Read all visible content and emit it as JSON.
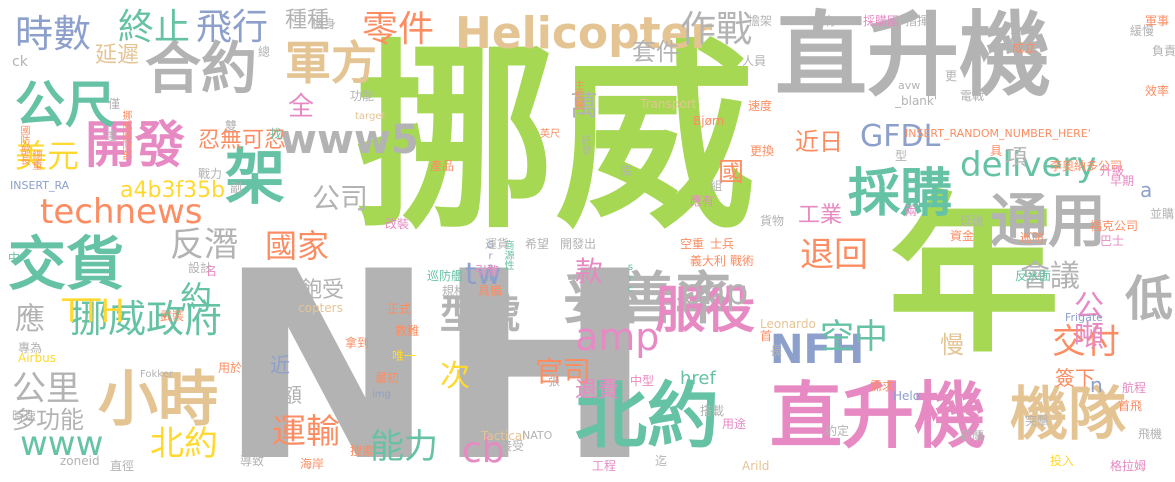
{
  "palette": {
    "green": "#a6d854",
    "gray": "#b3b3b3",
    "orange": "#fc8d62",
    "blue": "#8da0cb",
    "pink": "#e78ac3",
    "tan": "#e5c494",
    "teal": "#66c2a5",
    "yellow": "#ffd92f"
  },
  "words": [
    {
      "text": "挪威",
      "color": "green"
    },
    {
      "text": "NH",
      "color": "gray"
    },
    {
      "text": "直升機",
      "color": "gray"
    },
    {
      "text": "年",
      "color": "green"
    },
    {
      "text": "北約",
      "color": "teal"
    },
    {
      "text": "直升機",
      "color": "pink"
    },
    {
      "text": "Helicopter",
      "color": "tan"
    },
    {
      "text": "妥善率",
      "color": "gray"
    },
    {
      "text": "合約",
      "color": "gray"
    },
    {
      "text": "架",
      "color": "teal"
    },
    {
      "text": "交貨",
      "color": "teal"
    },
    {
      "text": "小時",
      "color": "tan"
    },
    {
      "text": "開發",
      "color": "pink"
    },
    {
      "text": "公尺",
      "color": "teal"
    },
    {
      "text": "採購",
      "color": "teal"
    },
    {
      "text": "通用",
      "color": "gray"
    },
    {
      "text": "機隊",
      "color": "tan"
    },
    {
      "text": "服役",
      "color": "pink"
    },
    {
      "text": "www5",
      "color": "gray"
    },
    {
      "text": "軍方",
      "color": "tan"
    },
    {
      "text": "時數",
      "color": "blue"
    },
    {
      "text": "終止",
      "color": "teal"
    },
    {
      "text": "飛行",
      "color": "blue"
    },
    {
      "text": "零件",
      "color": "orange"
    },
    {
      "text": "作戰",
      "color": "gray"
    },
    {
      "text": "挪威政府",
      "color": "teal"
    },
    {
      "text": "型號",
      "color": "gray"
    },
    {
      "text": "technews",
      "color": "orange"
    },
    {
      "text": "delivery",
      "color": "teal"
    },
    {
      "text": "NFH",
      "color": "blue"
    },
    {
      "text": "GFDL",
      "color": "blue"
    },
    {
      "text": "php",
      "color": "gray"
    },
    {
      "text": "amp",
      "color": "pink"
    },
    {
      "text": "反潛",
      "color": "gray"
    },
    {
      "text": "美元",
      "color": "yellow"
    },
    {
      "text": "TTH",
      "color": "yellow"
    },
    {
      "text": "公里",
      "color": "gray"
    },
    {
      "text": "www",
      "color": "teal"
    },
    {
      "text": "北約",
      "color": "yellow"
    },
    {
      "text": "運輸",
      "color": "orange"
    },
    {
      "text": "能力",
      "color": "teal"
    },
    {
      "text": "cb",
      "color": "pink"
    },
    {
      "text": "空中",
      "color": "teal"
    },
    {
      "text": "交付",
      "color": "orange"
    },
    {
      "text": "公噸",
      "color": "pink"
    },
    {
      "text": "會議",
      "color": "gray"
    },
    {
      "text": "低",
      "color": "gray"
    },
    {
      "text": "退回",
      "color": "orange"
    },
    {
      "text": "國家",
      "color": "orange"
    },
    {
      "text": "款",
      "color": "pink"
    },
    {
      "text": "官司",
      "color": "orange"
    },
    {
      "text": "tw",
      "color": "blue"
    },
    {
      "text": "次",
      "color": "yellow"
    },
    {
      "text": "億",
      "color": "gray"
    },
    {
      "text": "多功能",
      "color": "gray"
    },
    {
      "text": "應",
      "color": "gray"
    },
    {
      "text": "約",
      "color": "teal"
    },
    {
      "text": "全",
      "color": "pink"
    },
    {
      "text": "公司",
      "color": "gray"
    },
    {
      "text": "萬",
      "color": "gray"
    },
    {
      "text": "套件",
      "color": "gray"
    },
    {
      "text": "國",
      "color": "orange"
    },
    {
      "text": "近日",
      "color": "orange"
    },
    {
      "text": "工業",
      "color": "pink"
    },
    {
      "text": "a4b3f35b",
      "color": "yellow"
    },
    {
      "text": "種種",
      "color": "gray"
    },
    {
      "text": "延遲",
      "color": "tan"
    },
    {
      "text": "飽受",
      "color": "gray"
    },
    {
      "text": "忍無可忍",
      "color": "orange"
    },
    {
      "text": "簽下",
      "color": "orange"
    },
    {
      "text": "慢",
      "color": "tan"
    },
    {
      "text": "退費",
      "color": "pink"
    },
    {
      "text": "項",
      "color": "gray"
    },
    {
      "text": "近",
      "color": "blue"
    },
    {
      "text": "額",
      "color": "gray"
    },
    {
      "text": "href",
      "color": "teal"
    },
    {
      "text": "n",
      "color": "blue"
    },
    {
      "text": "a",
      "color": "blue"
    },
    {
      "text": "ck",
      "color": "gray"
    },
    {
      "text": "Bjørn",
      "color": "orange"
    },
    {
      "text": "Transport",
      "color": "tan"
    },
    {
      "text": "_blank'",
      "color": "gray"
    },
    {
      "text": "INSERT_RANDOM_NUMBER_HERE'",
      "color": "orange"
    },
    {
      "text": "INSERT_RA",
      "color": "blue"
    },
    {
      "text": "國防部長",
      "color": "orange"
    },
    {
      "text": "總重",
      "color": "orange"
    },
    {
      "text": "挪威國防部",
      "color": "orange"
    },
    {
      "text": "target",
      "color": "tan"
    },
    {
      "text": "主旋翼",
      "color": "orange"
    },
    {
      "text": "研發",
      "color": "gray"
    },
    {
      "text": "英尺",
      "color": "orange"
    },
    {
      "text": "商源性",
      "color": "teal"
    },
    {
      "text": "Gram",
      "color": "blue"
    },
    {
      "text": "Leonardo",
      "color": "tan"
    },
    {
      "text": "Frigate",
      "color": "blue"
    },
    {
      "text": "Fokker",
      "color": "gray"
    },
    {
      "text": "Airbus",
      "color": "yellow"
    },
    {
      "text": "copters",
      "color": "tan"
    },
    {
      "text": "Tactical",
      "color": "tan"
    },
    {
      "text": "NATO",
      "color": "gray"
    },
    {
      "text": "Arild",
      "color": "tan"
    },
    {
      "text": "Helo",
      "color": "blue"
    },
    {
      "text": "zoneid",
      "color": "gray"
    },
    {
      "text": "src",
      "color": "teal"
    },
    {
      "text": "img",
      "color": "blue"
    },
    {
      "text": "avw",
      "color": "gray"
    },
    {
      "text": "採購國",
      "color": "pink"
    },
    {
      "text": "指揮",
      "color": "gray"
    },
    {
      "text": "軍事",
      "color": "orange"
    },
    {
      "text": "緩慢",
      "color": "gray"
    },
    {
      "text": "負責",
      "color": "gray"
    },
    {
      "text": "效率",
      "color": "orange"
    },
    {
      "text": "成立",
      "color": "orange"
    },
    {
      "text": "電戰",
      "color": "gray"
    },
    {
      "text": "李奧納多公司",
      "color": "orange"
    },
    {
      "text": "福克公司",
      "color": "orange"
    },
    {
      "text": "升級",
      "color": "pink"
    },
    {
      "text": "早期",
      "color": "pink"
    },
    {
      "text": "巴士",
      "color": "pink"
    },
    {
      "text": "並購",
      "color": "gray"
    },
    {
      "text": "巡防",
      "color": "orange"
    },
    {
      "text": "反水面",
      "color": "teal"
    },
    {
      "text": "格拉姆",
      "color": "pink"
    },
    {
      "text": "首飛",
      "color": "orange"
    },
    {
      "text": "航程",
      "color": "pink"
    },
    {
      "text": "飛機",
      "color": "gray"
    },
    {
      "text": "投入",
      "color": "yellow"
    },
    {
      "text": "荷蘭",
      "color": "gray"
    },
    {
      "text": "突擊",
      "color": "gray"
    },
    {
      "text": "需求",
      "color": "orange"
    },
    {
      "text": "約定",
      "color": "gray"
    },
    {
      "text": "中型",
      "color": "pink"
    },
    {
      "text": "戰術",
      "color": "orange"
    },
    {
      "text": "義大利",
      "color": "orange"
    },
    {
      "text": "士兵",
      "color": "orange"
    },
    {
      "text": "空重",
      "color": "orange"
    },
    {
      "text": "巡防艦",
      "color": "teal"
    },
    {
      "text": "引擎",
      "color": "pink"
    },
    {
      "text": "具備",
      "color": "orange"
    },
    {
      "text": "規格",
      "color": "gray"
    },
    {
      "text": "正式",
      "color": "orange"
    },
    {
      "text": "救難",
      "color": "orange"
    },
    {
      "text": "拿到",
      "color": "orange"
    },
    {
      "text": "唯一",
      "color": "yellow"
    },
    {
      "text": "最初",
      "color": "orange"
    },
    {
      "text": "全數",
      "color": "gray"
    },
    {
      "text": "今日",
      "color": "gray"
    },
    {
      "text": "種種",
      "color": "gray"
    },
    {
      "text": "機棚",
      "color": "gray"
    },
    {
      "text": "搜索",
      "color": "orange"
    },
    {
      "text": "海岸",
      "color": "orange"
    },
    {
      "text": "導致",
      "color": "gray"
    },
    {
      "text": "直徑",
      "color": "gray"
    },
    {
      "text": "接受",
      "color": "gray"
    },
    {
      "text": "用途",
      "color": "pink"
    },
    {
      "text": "工程",
      "color": "pink"
    },
    {
      "text": "迄",
      "color": "gray"
    },
    {
      "text": "搭載",
      "color": "gray"
    },
    {
      "text": "武裝",
      "color": "orange"
    },
    {
      "text": "專為",
      "color": "gray"
    },
    {
      "text": "設計",
      "color": "gray"
    },
    {
      "text": "用於",
      "color": "orange"
    },
    {
      "text": "時速",
      "color": "gray"
    },
    {
      "text": "中",
      "color": "teal"
    },
    {
      "text": "擔架",
      "color": "gray"
    },
    {
      "text": "共有",
      "color": "gray"
    },
    {
      "text": "人員",
      "color": "gray"
    },
    {
      "text": "速度",
      "color": "orange"
    },
    {
      "text": "功能",
      "color": "gray"
    },
    {
      "text": "僅",
      "color": "gray"
    },
    {
      "text": "更換",
      "color": "orange"
    },
    {
      "text": "產品",
      "color": "orange"
    },
    {
      "text": "戰力",
      "color": "gray"
    },
    {
      "text": "副",
      "color": "gray"
    },
    {
      "text": "雙",
      "color": "gray"
    },
    {
      "text": "找",
      "color": "teal"
    },
    {
      "text": "達",
      "color": "gray"
    },
    {
      "text": "名",
      "color": "pink"
    },
    {
      "text": "改裝",
      "color": "pink"
    },
    {
      "text": "開發出",
      "color": "gray"
    },
    {
      "text": "運貨",
      "color": "gray"
    },
    {
      "text": "希望",
      "color": "gray"
    },
    {
      "text": "貨物",
      "color": "gray"
    },
    {
      "text": "應有",
      "color": "pink"
    },
    {
      "text": "型",
      "color": "gray"
    },
    {
      "text": "兩",
      "color": "pink"
    },
    {
      "text": "資金",
      "color": "orange"
    },
    {
      "text": "延後",
      "color": "gray"
    },
    {
      "text": "首",
      "color": "orange"
    },
    {
      "text": "長",
      "color": "gray"
    },
    {
      "text": "機身",
      "color": "gray"
    },
    {
      "text": "總",
      "color": "gray"
    },
    {
      "text": "底",
      "color": "gray"
    },
    {
      "text": "組",
      "color": "gray"
    },
    {
      "text": "張",
      "color": "gray"
    },
    {
      "text": "更",
      "color": "gray"
    },
    {
      "text": "高",
      "color": "gray"
    },
    {
      "text": "具",
      "color": "orange"
    },
    {
      "text": "發揮",
      "color": "gray"
    }
  ]
}
